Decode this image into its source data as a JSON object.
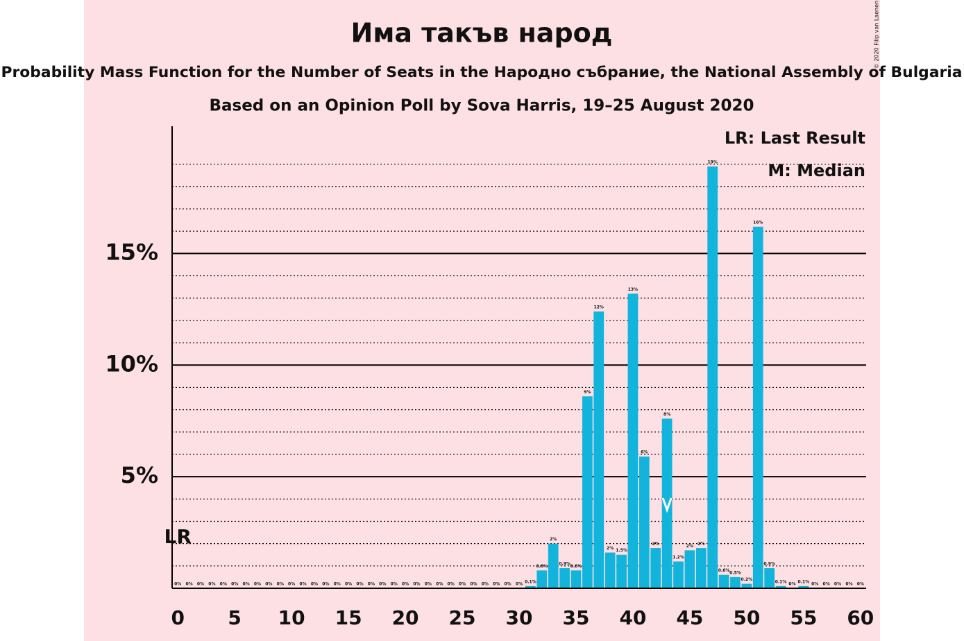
{
  "chart_data": {
    "type": "bar",
    "title": "Има такъв народ",
    "subtitle": "Probability Mass Function for the Number of Seats in the Народно събрание, the National Assembly of Bulgaria",
    "subtitle2": "Based on an Opinion Poll by Sova Harris, 19–25 August 2020",
    "copyright": "© 2020 Filip van Laenen",
    "legend": [
      "LR: Last Result",
      "M: Median"
    ],
    "last_result_label": "LR",
    "last_result": 0,
    "median": 43,
    "color": "#13b4dc",
    "x": [
      0,
      1,
      2,
      3,
      4,
      5,
      6,
      7,
      8,
      9,
      10,
      11,
      12,
      13,
      14,
      15,
      16,
      17,
      18,
      19,
      20,
      21,
      22,
      23,
      24,
      25,
      26,
      27,
      28,
      29,
      30,
      31,
      32,
      33,
      34,
      35,
      36,
      37,
      38,
      39,
      40,
      41,
      42,
      43,
      44,
      45,
      46,
      47,
      48,
      49,
      50,
      51,
      52,
      53,
      54,
      55,
      56,
      57,
      58,
      59,
      60
    ],
    "values": [
      0,
      0,
      0,
      0,
      0,
      0,
      0,
      0,
      0,
      0,
      0,
      0,
      0,
      0,
      0,
      0,
      0,
      0,
      0,
      0,
      0,
      0,
      0,
      0,
      0,
      0,
      0,
      0,
      0,
      0,
      0,
      0.1,
      0.8,
      2.0,
      0.9,
      0.8,
      8.6,
      12.4,
      1.6,
      1.5,
      13.2,
      5.9,
      1.8,
      7.6,
      1.2,
      1.7,
      1.8,
      18.9,
      0.6,
      0.5,
      0.2,
      16.2,
      0.9,
      0.1,
      0,
      0.1,
      0,
      0,
      0,
      0,
      0
    ],
    "value_labels": [
      "0%",
      "0%",
      "0%",
      "0%",
      "0%",
      "0%",
      "0%",
      "0%",
      "0%",
      "0%",
      "0%",
      "0%",
      "0%",
      "0%",
      "0%",
      "0%",
      "0%",
      "0%",
      "0%",
      "0%",
      "0%",
      "0%",
      "0%",
      "0%",
      "0%",
      "0%",
      "0%",
      "0%",
      "0%",
      "0%",
      "0%",
      "0.1%",
      "0.8%",
      "2%",
      "0.9%",
      "0.8%",
      "9%",
      "12%",
      "2%",
      "1.5%",
      "13%",
      "6%",
      "2%",
      "8%",
      "1.2%",
      "2%",
      "2%",
      "19%",
      "0.6%",
      "0.5%",
      "0.2%",
      "16%",
      "0.9%",
      "0.1%",
      "0%",
      "0.1%",
      "0%",
      "0%",
      "0%",
      "0%",
      "0%"
    ],
    "xlim": [
      -0.5,
      60.5
    ],
    "xticks": [
      0,
      5,
      10,
      15,
      20,
      25,
      30,
      35,
      40,
      45,
      50,
      55,
      60
    ],
    "ylim": [
      0,
      20.7
    ],
    "yticks": [
      {
        "value": 5,
        "label": "5%"
      },
      {
        "value": 10,
        "label": "10%"
      },
      {
        "value": 15,
        "label": "15%"
      }
    ],
    "minor_yticks": [
      1,
      2,
      3,
      4,
      6,
      7,
      8,
      9,
      11,
      12,
      13,
      14,
      16,
      17,
      18,
      19
    ],
    "grid": true
  }
}
